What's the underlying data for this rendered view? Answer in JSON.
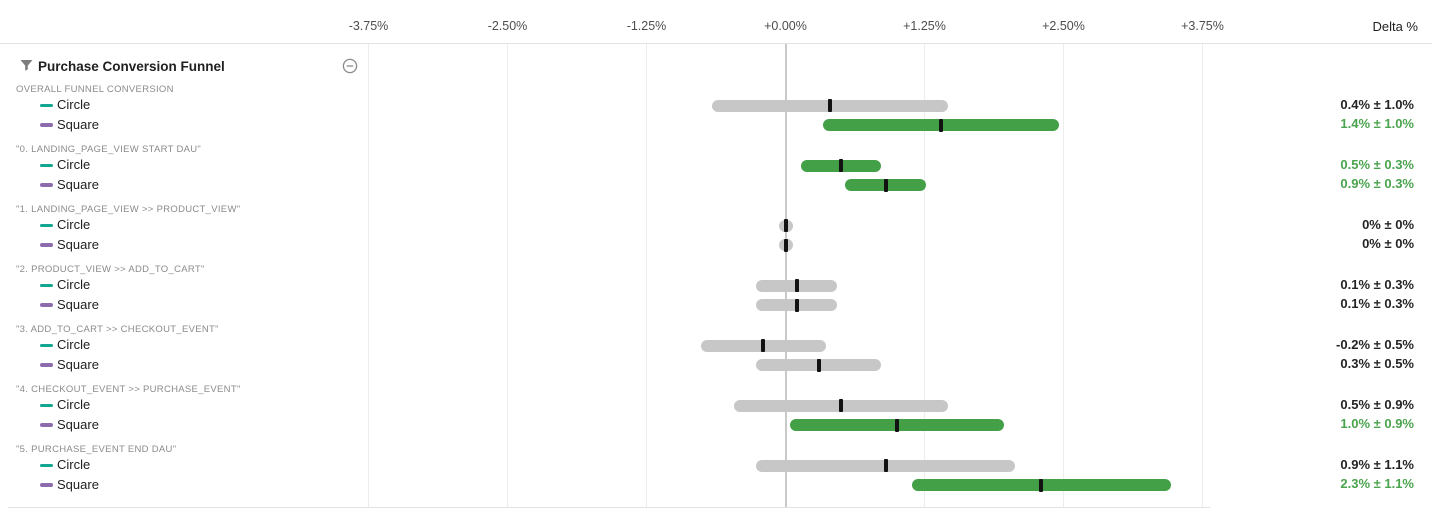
{
  "panel": {
    "title": "Purchase Conversion Funnel",
    "filter_icon": "filter-icon",
    "collapse_icon": "minus-circle-icon"
  },
  "axis": {
    "ticks": [
      {
        "label": "-3.75%",
        "value": -3.75
      },
      {
        "label": "-2.50%",
        "value": -2.5
      },
      {
        "label": "-1.25%",
        "value": -1.25
      },
      {
        "label": "+0.00%",
        "value": 0
      },
      {
        "label": "+1.25%",
        "value": 1.25
      },
      {
        "label": "+2.50%",
        "value": 2.5
      },
      {
        "label": "+3.75%",
        "value": 3.75
      }
    ],
    "delta_header": "Delta %"
  },
  "colors": {
    "significant_green": "#43a047",
    "green_text": "#4aa34d",
    "neutral_gray_bar": "#c7c7c7",
    "point_tick": "#121212",
    "circle_variant_teal": "#13a691",
    "square_variant_purple": "#8d6cad",
    "zero_line": "#c9c9c9",
    "gridline": "#ededed"
  },
  "chart_data": {
    "type": "bar",
    "subtype": "horizontal-confidence-interval",
    "title": "Purchase Conversion Funnel",
    "xlabel": "Delta %",
    "xlim": [
      -3.75,
      3.75
    ],
    "grid": true,
    "units": "percent",
    "variants": [
      {
        "name": "Circle",
        "color": "#13a691"
      },
      {
        "name": "Square",
        "color": "#8d6cad"
      }
    ],
    "groups": [
      {
        "label": "OVERALL FUNNEL CONVERSION",
        "rows": [
          {
            "variant": "Circle",
            "delta": 0.4,
            "error": 1.0,
            "display": "0.4% ± 1.0%",
            "significant": false
          },
          {
            "variant": "Square",
            "delta": 1.4,
            "error": 1.0,
            "display": "1.4% ± 1.0%",
            "significant": true
          }
        ]
      },
      {
        "label": "\"0. LANDING_PAGE_VIEW START DAU\"",
        "rows": [
          {
            "variant": "Circle",
            "delta": 0.5,
            "error": 0.3,
            "display": "0.5% ± 0.3%",
            "significant": true
          },
          {
            "variant": "Square",
            "delta": 0.9,
            "error": 0.3,
            "display": "0.9% ± 0.3%",
            "significant": true
          }
        ]
      },
      {
        "label": "\"1. LANDING_PAGE_VIEW >> PRODUCT_VIEW\"",
        "rows": [
          {
            "variant": "Circle",
            "delta": 0,
            "error": 0,
            "display": "0% ± 0%",
            "significant": false
          },
          {
            "variant": "Square",
            "delta": 0,
            "error": 0,
            "display": "0% ± 0%",
            "significant": false
          }
        ]
      },
      {
        "label": "\"2. PRODUCT_VIEW >> ADD_TO_CART\"",
        "rows": [
          {
            "variant": "Circle",
            "delta": 0.1,
            "error": 0.3,
            "display": "0.1% ± 0.3%",
            "significant": false
          },
          {
            "variant": "Square",
            "delta": 0.1,
            "error": 0.3,
            "display": "0.1% ± 0.3%",
            "significant": false
          }
        ]
      },
      {
        "label": "\"3. ADD_TO_CART >> CHECKOUT_EVENT\"",
        "rows": [
          {
            "variant": "Circle",
            "delta": -0.2,
            "error": 0.5,
            "display": "-0.2% ± 0.5%",
            "significant": false
          },
          {
            "variant": "Square",
            "delta": 0.3,
            "error": 0.5,
            "display": "0.3% ± 0.5%",
            "significant": false
          }
        ]
      },
      {
        "label": "\"4. CHECKOUT_EVENT >> PURCHASE_EVENT\"",
        "rows": [
          {
            "variant": "Circle",
            "delta": 0.5,
            "error": 0.9,
            "display": "0.5% ± 0.9%",
            "significant": false
          },
          {
            "variant": "Square",
            "delta": 1.0,
            "error": 0.9,
            "display": "1.0% ± 0.9%",
            "significant": true
          }
        ]
      },
      {
        "label": "\"5. PURCHASE_EVENT END DAU\"",
        "rows": [
          {
            "variant": "Circle",
            "delta": 0.9,
            "error": 1.1,
            "display": "0.9% ± 1.1%",
            "significant": false
          },
          {
            "variant": "Square",
            "delta": 2.3,
            "error": 1.1,
            "display": "2.3% ± 1.1%",
            "significant": true
          }
        ]
      }
    ]
  }
}
